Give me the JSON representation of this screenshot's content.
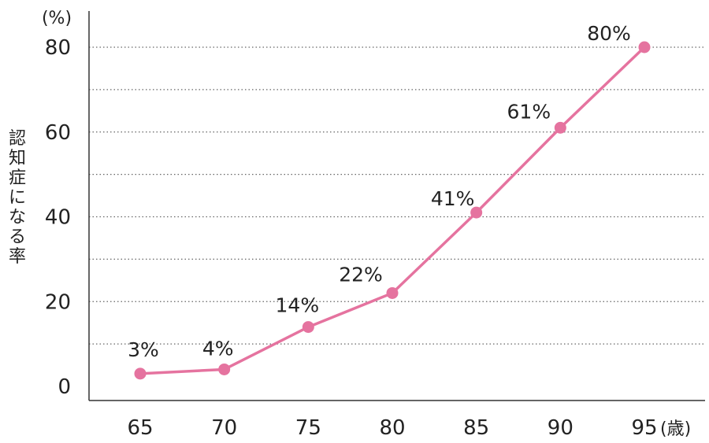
{
  "chart_data": {
    "type": "line",
    "x": [
      65,
      70,
      75,
      80,
      85,
      90,
      95
    ],
    "series": [
      {
        "values": [
          3,
          4,
          14,
          22,
          41,
          61,
          80
        ]
      }
    ],
    "data_labels": [
      "3%",
      "4%",
      "14%",
      "22%",
      "41%",
      "61%",
      "80%"
    ],
    "x_tick_labels": [
      "65",
      "70",
      "75",
      "80",
      "85",
      "90",
      "95"
    ],
    "y_tick_labels": [
      "0",
      "20",
      "40",
      "60",
      "80"
    ],
    "y_ticks": [
      0,
      20,
      40,
      60,
      80
    ],
    "y_grid": [
      10,
      20,
      30,
      40,
      50,
      60,
      70,
      80
    ],
    "ylabel": "認知症になる率",
    "y_unit": "(%)",
    "x_unit": "(歳)",
    "ylim": [
      0,
      80
    ],
    "xlim": [
      65,
      95
    ],
    "grid": true,
    "line_color": "#e5739f"
  }
}
